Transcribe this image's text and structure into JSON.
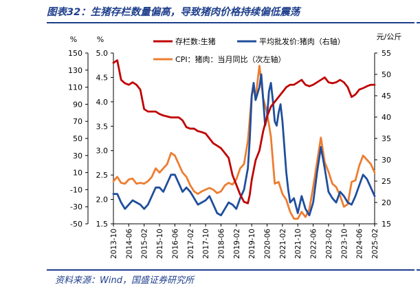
{
  "figure": {
    "title": "图表32：生猪存栏数量偏高，导致猪肉价格持续偏低震荡",
    "source": "资料来源：Wind，国盛证券研究所"
  },
  "colors": {
    "brand": "#1f3f8c",
    "inventory": "#c00000",
    "price": "#1f4e9c",
    "cpi": "#ed7d31",
    "axis": "#000000"
  },
  "chart_data": {
    "type": "line",
    "title": "",
    "grid": false,
    "legend_position": "top",
    "x_tick_labels": [
      "2013-10",
      "2014-06",
      "2015-02",
      "2015-10",
      "2016-06",
      "2017-02",
      "2017-10",
      "2018-06",
      "2019-02",
      "2019-10",
      "2020-06",
      "2021-02",
      "2021-10",
      "2022-06",
      "2023-02",
      "2023-10",
      "2024-06",
      "2025-02"
    ],
    "x_range": [
      "2013-10",
      "2025-02"
    ],
    "axes": {
      "left_outer": {
        "unit": "%",
        "ylim": [
          -50,
          150
        ],
        "ticks": [
          "150",
          "130",
          "110",
          "90",
          "70",
          "50",
          "30",
          "10",
          "-10",
          "-30",
          "-50"
        ]
      },
      "left_inner": {
        "unit": "%",
        "ylim": [
          1.5,
          5.0
        ],
        "ticks": [
          "5.0",
          "4.5",
          "4.0",
          "3.5",
          "3.0",
          "2.5",
          "2.0",
          "1.5"
        ]
      },
      "right": {
        "unit": "元/公斤",
        "ylim": [
          15,
          55
        ],
        "ticks": [
          "55",
          "50",
          "45",
          "40",
          "35",
          "30",
          "25",
          "20",
          "15"
        ]
      }
    },
    "series": [
      {
        "name": "存栏数:生猪",
        "axis": "left_inner",
        "color": "#c00000",
        "points": [
          [
            "2013-10",
            4.8
          ],
          [
            "2013-12",
            4.85
          ],
          [
            "2014-02",
            4.45
          ],
          [
            "2014-04",
            4.38
          ],
          [
            "2014-06",
            4.35
          ],
          [
            "2014-08",
            4.4
          ],
          [
            "2014-10",
            4.35
          ],
          [
            "2014-12",
            4.25
          ],
          [
            "2015-02",
            3.85
          ],
          [
            "2015-04",
            3.8
          ],
          [
            "2015-06",
            3.8
          ],
          [
            "2015-08",
            3.8
          ],
          [
            "2015-10",
            3.75
          ],
          [
            "2015-12",
            3.72
          ],
          [
            "2016-02",
            3.7
          ],
          [
            "2016-04",
            3.68
          ],
          [
            "2016-06",
            3.68
          ],
          [
            "2016-08",
            3.68
          ],
          [
            "2016-10",
            3.62
          ],
          [
            "2016-12",
            3.48
          ],
          [
            "2017-02",
            3.45
          ],
          [
            "2017-04",
            3.45
          ],
          [
            "2017-06",
            3.4
          ],
          [
            "2017-08",
            3.38
          ],
          [
            "2017-10",
            3.35
          ],
          [
            "2017-12",
            3.25
          ],
          [
            "2018-02",
            3.15
          ],
          [
            "2018-04",
            3.1
          ],
          [
            "2018-06",
            3.05
          ],
          [
            "2018-08",
            2.95
          ],
          [
            "2018-10",
            2.85
          ],
          [
            "2018-12",
            2.5
          ],
          [
            "2019-02",
            2.3
          ],
          [
            "2019-04",
            2.1
          ],
          [
            "2019-06",
            1.95
          ],
          [
            "2019-08",
            1.92
          ],
          [
            "2019-09",
            2.1
          ],
          [
            "2019-10",
            2.4
          ],
          [
            "2019-12",
            2.8
          ],
          [
            "2020-02",
            3.0
          ],
          [
            "2020-04",
            3.4
          ],
          [
            "2020-06",
            3.7
          ],
          [
            "2020-08",
            3.9
          ],
          [
            "2020-10",
            4.0
          ],
          [
            "2020-12",
            4.1
          ],
          [
            "2021-02",
            4.2
          ],
          [
            "2021-04",
            4.3
          ],
          [
            "2021-06",
            4.35
          ],
          [
            "2021-08",
            4.35
          ],
          [
            "2021-10",
            4.4
          ],
          [
            "2021-12",
            4.45
          ],
          [
            "2022-02",
            4.35
          ],
          [
            "2022-04",
            4.32
          ],
          [
            "2022-06",
            4.35
          ],
          [
            "2022-08",
            4.4
          ],
          [
            "2022-10",
            4.45
          ],
          [
            "2022-12",
            4.5
          ],
          [
            "2023-02",
            4.4
          ],
          [
            "2023-04",
            4.38
          ],
          [
            "2023-06",
            4.4
          ],
          [
            "2023-08",
            4.45
          ],
          [
            "2023-10",
            4.4
          ],
          [
            "2023-12",
            4.3
          ],
          [
            "2024-02",
            4.1
          ],
          [
            "2024-04",
            4.15
          ],
          [
            "2024-06",
            4.25
          ],
          [
            "2024-08",
            4.28
          ],
          [
            "2024-10",
            4.32
          ],
          [
            "2024-12",
            4.35
          ],
          [
            "2025-02",
            4.35
          ]
        ]
      },
      {
        "name": "平均批发价:猪肉（右轴）",
        "axis": "right",
        "color": "#1f4e9c",
        "points": [
          [
            "2013-10",
            22.0
          ],
          [
            "2013-12",
            22.0
          ],
          [
            "2014-02",
            20.0
          ],
          [
            "2014-04",
            18.5
          ],
          [
            "2014-06",
            19.5
          ],
          [
            "2014-08",
            20.5
          ],
          [
            "2014-10",
            20.0
          ],
          [
            "2014-12",
            19.5
          ],
          [
            "2015-02",
            18.5
          ],
          [
            "2015-04",
            19.5
          ],
          [
            "2015-06",
            21.5
          ],
          [
            "2015-08",
            23.5
          ],
          [
            "2015-10",
            23.5
          ],
          [
            "2015-12",
            22.5
          ],
          [
            "2016-02",
            24.5
          ],
          [
            "2016-04",
            26.5
          ],
          [
            "2016-06",
            26.5
          ],
          [
            "2016-08",
            24.5
          ],
          [
            "2016-10",
            22.5
          ],
          [
            "2016-12",
            23.5
          ],
          [
            "2017-02",
            22.5
          ],
          [
            "2017-04",
            21.0
          ],
          [
            "2017-06",
            19.5
          ],
          [
            "2017-08",
            20.0
          ],
          [
            "2017-10",
            20.5
          ],
          [
            "2017-12",
            21.5
          ],
          [
            "2018-02",
            19.5
          ],
          [
            "2018-04",
            17.5
          ],
          [
            "2018-06",
            17.0
          ],
          [
            "2018-08",
            18.5
          ],
          [
            "2018-10",
            20.0
          ],
          [
            "2018-12",
            19.5
          ],
          [
            "2019-02",
            18.5
          ],
          [
            "2019-04",
            21.0
          ],
          [
            "2019-06",
            23.0
          ],
          [
            "2019-08",
            28.0
          ],
          [
            "2019-09",
            35.0
          ],
          [
            "2019-10",
            45.0
          ],
          [
            "2019-11",
            48.0
          ],
          [
            "2019-12",
            44.0
          ],
          [
            "2020-02",
            47.0
          ],
          [
            "2020-03",
            50.0
          ],
          [
            "2020-04",
            44.0
          ],
          [
            "2020-05",
            38.0
          ],
          [
            "2020-06",
            40.0
          ],
          [
            "2020-07",
            46.0
          ],
          [
            "2020-08",
            48.0
          ],
          [
            "2020-09",
            44.0
          ],
          [
            "2020-10",
            39.0
          ],
          [
            "2020-11",
            38.0
          ],
          [
            "2020-12",
            41.0
          ],
          [
            "2021-01",
            43.0
          ],
          [
            "2021-02",
            39.0
          ],
          [
            "2021-03",
            33.0
          ],
          [
            "2021-04",
            27.0
          ],
          [
            "2021-05",
            23.0
          ],
          [
            "2021-06",
            20.0
          ],
          [
            "2021-08",
            21.0
          ],
          [
            "2021-10",
            17.5
          ],
          [
            "2021-12",
            21.5
          ],
          [
            "2022-02",
            18.5
          ],
          [
            "2022-04",
            17.0
          ],
          [
            "2022-06",
            20.0
          ],
          [
            "2022-08",
            27.0
          ],
          [
            "2022-10",
            33.0
          ],
          [
            "2022-12",
            28.0
          ],
          [
            "2023-02",
            22.5
          ],
          [
            "2023-04",
            21.0
          ],
          [
            "2023-06",
            20.0
          ],
          [
            "2023-08",
            22.5
          ],
          [
            "2023-10",
            21.5
          ],
          [
            "2023-12",
            20.0
          ],
          [
            "2024-02",
            19.5
          ],
          [
            "2024-04",
            21.5
          ],
          [
            "2024-06",
            24.0
          ],
          [
            "2024-08",
            26.5
          ],
          [
            "2024-10",
            25.5
          ],
          [
            "2024-12",
            23.5
          ],
          [
            "2025-02",
            21.5
          ]
        ]
      },
      {
        "name": "CPI：猪肉：当月同比（次左轴）",
        "axis": "left_outer",
        "color": "#ed7d31",
        "points": [
          [
            "2013-10",
            0
          ],
          [
            "2013-12",
            5
          ],
          [
            "2014-02",
            -2
          ],
          [
            "2014-04",
            -3
          ],
          [
            "2014-06",
            2
          ],
          [
            "2014-08",
            3
          ],
          [
            "2014-10",
            -3
          ],
          [
            "2014-12",
            -2
          ],
          [
            "2015-02",
            -3
          ],
          [
            "2015-04",
            0
          ],
          [
            "2015-06",
            5
          ],
          [
            "2015-08",
            15
          ],
          [
            "2015-10",
            10
          ],
          [
            "2015-12",
            15
          ],
          [
            "2016-02",
            20
          ],
          [
            "2016-04",
            33
          ],
          [
            "2016-06",
            30
          ],
          [
            "2016-08",
            20
          ],
          [
            "2016-10",
            10
          ],
          [
            "2016-12",
            5
          ],
          [
            "2017-02",
            -5
          ],
          [
            "2017-04",
            -12
          ],
          [
            "2017-06",
            -15
          ],
          [
            "2017-08",
            -12
          ],
          [
            "2017-10",
            -10
          ],
          [
            "2017-12",
            -8
          ],
          [
            "2018-02",
            -10
          ],
          [
            "2018-04",
            -14
          ],
          [
            "2018-06",
            -12
          ],
          [
            "2018-08",
            -5
          ],
          [
            "2018-10",
            -2
          ],
          [
            "2018-12",
            -4
          ],
          [
            "2019-02",
            2
          ],
          [
            "2019-04",
            15
          ],
          [
            "2019-06",
            20
          ],
          [
            "2019-08",
            47
          ],
          [
            "2019-10",
            100
          ],
          [
            "2019-11",
            110
          ],
          [
            "2019-12",
            97
          ],
          [
            "2020-02",
            135
          ],
          [
            "2020-03",
            117
          ],
          [
            "2020-04",
            97
          ],
          [
            "2020-06",
            80
          ],
          [
            "2020-08",
            52
          ],
          [
            "2020-10",
            -3
          ],
          [
            "2020-12",
            -1
          ],
          [
            "2021-02",
            -15
          ],
          [
            "2021-04",
            -22
          ],
          [
            "2021-06",
            -36
          ],
          [
            "2021-08",
            -44
          ],
          [
            "2021-10",
            -44
          ],
          [
            "2021-12",
            -36
          ],
          [
            "2022-02",
            -42
          ],
          [
            "2022-04",
            -33
          ],
          [
            "2022-06",
            -7
          ],
          [
            "2022-08",
            22
          ],
          [
            "2022-10",
            51
          ],
          [
            "2022-12",
            22
          ],
          [
            "2023-02",
            11
          ],
          [
            "2023-04",
            -3
          ],
          [
            "2023-06",
            -7
          ],
          [
            "2023-08",
            -17
          ],
          [
            "2023-10",
            -30
          ],
          [
            "2023-12",
            -27
          ],
          [
            "2024-02",
            -1
          ],
          [
            "2024-04",
            1
          ],
          [
            "2024-06",
            18
          ],
          [
            "2024-08",
            30
          ],
          [
            "2024-10",
            25
          ],
          [
            "2024-12",
            20
          ],
          [
            "2025-02",
            10
          ]
        ]
      }
    ]
  }
}
